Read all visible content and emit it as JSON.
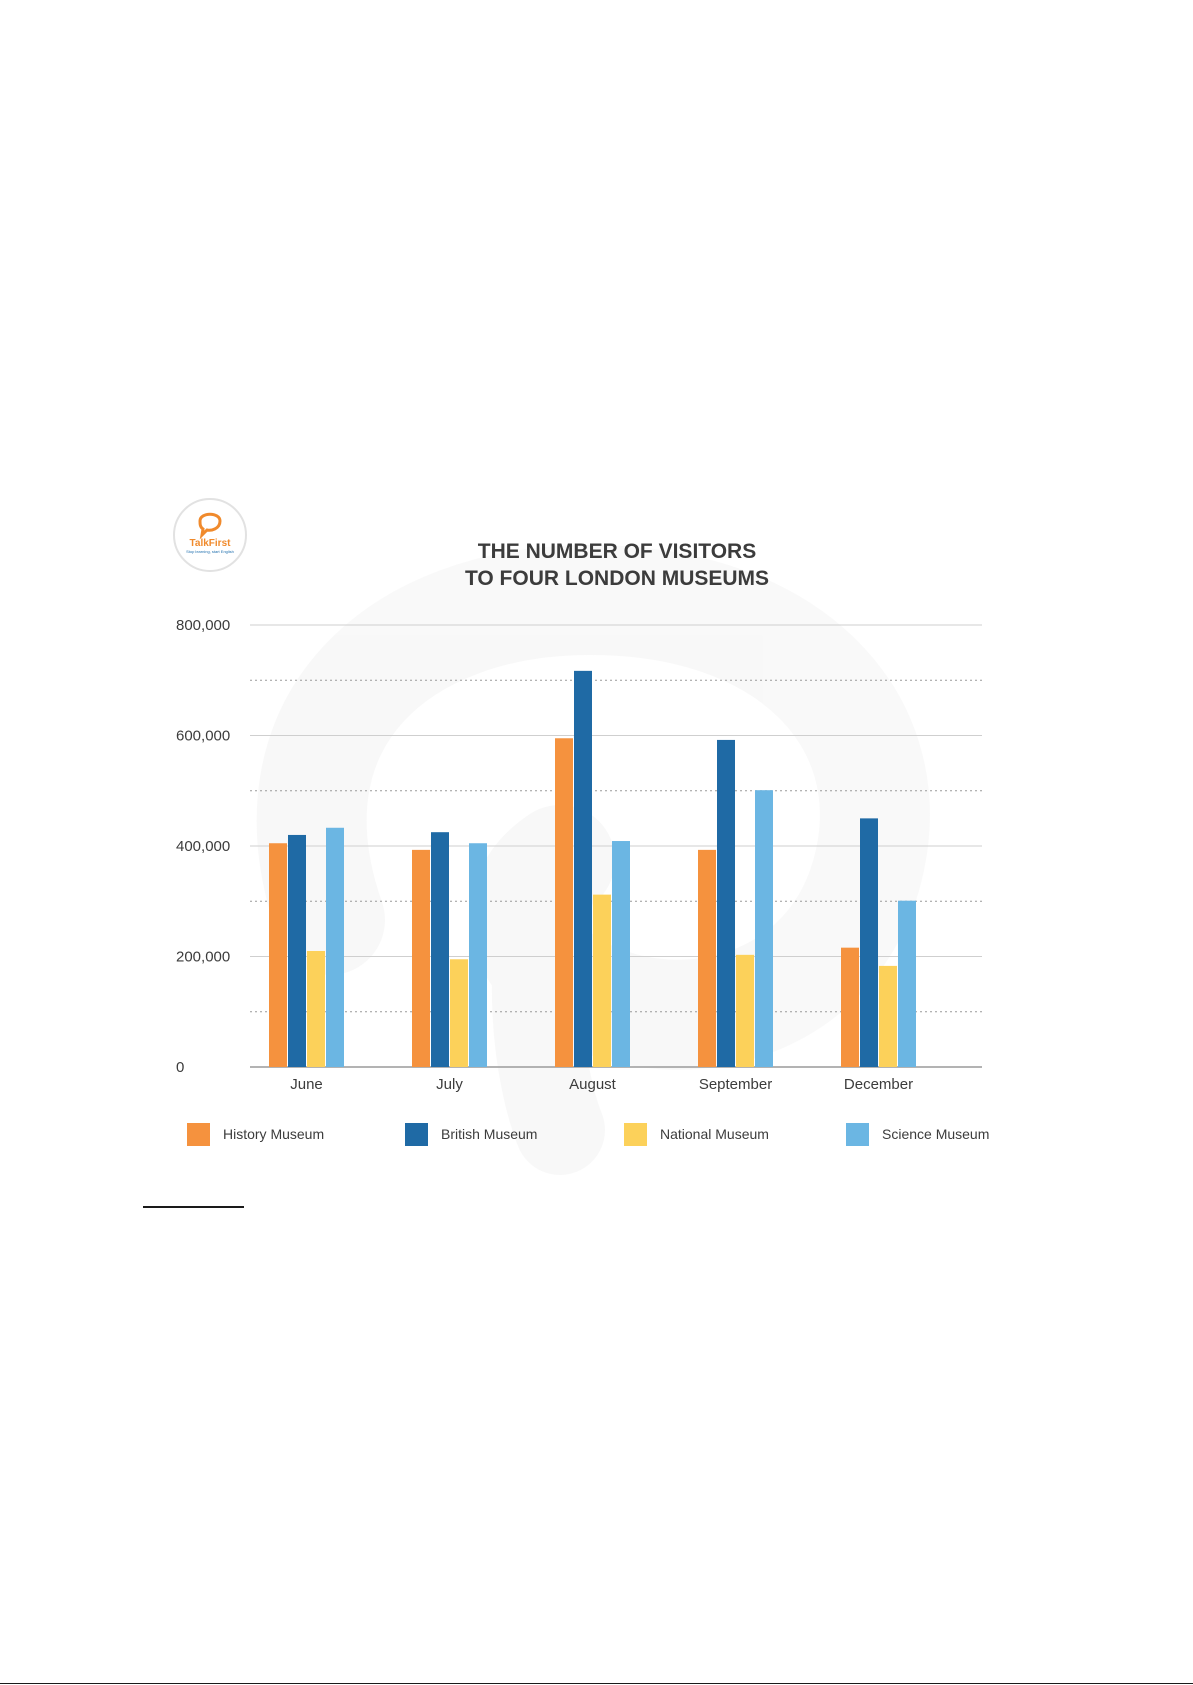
{
  "logo": {
    "name": "TalkFirst",
    "tagline": "Stop learning, start English"
  },
  "chart_data": {
    "type": "bar",
    "title_lines": [
      "THE NUMBER OF VISITORS",
      "TO FOUR LONDON MUSEUMS"
    ],
    "categories": [
      "June",
      "July",
      "August",
      "September",
      "December"
    ],
    "series": [
      {
        "name": "History Museum",
        "color": "#f5923e",
        "values": [
          405000,
          393000,
          595000,
          393000,
          216000
        ]
      },
      {
        "name": "British Museum",
        "color": "#1f6aa5",
        "values": [
          420000,
          425000,
          717000,
          592000,
          450000
        ]
      },
      {
        "name": "National Museum",
        "color": "#fcd15a",
        "values": [
          210000,
          195000,
          312000,
          203000,
          183000
        ]
      },
      {
        "name": "Science Museum",
        "color": "#6bb6e3",
        "values": [
          433000,
          405000,
          409000,
          501000,
          301000
        ]
      }
    ],
    "ylim": [
      0,
      800000
    ],
    "yticks": [
      0,
      200000,
      400000,
      600000,
      800000
    ],
    "ytick_labels": [
      "0",
      "200,000",
      "400,000",
      "600,000",
      "800,000"
    ],
    "minor_gridlines": [
      100000,
      300000,
      500000,
      700000
    ],
    "grid": true,
    "legend_position": "bottom"
  }
}
